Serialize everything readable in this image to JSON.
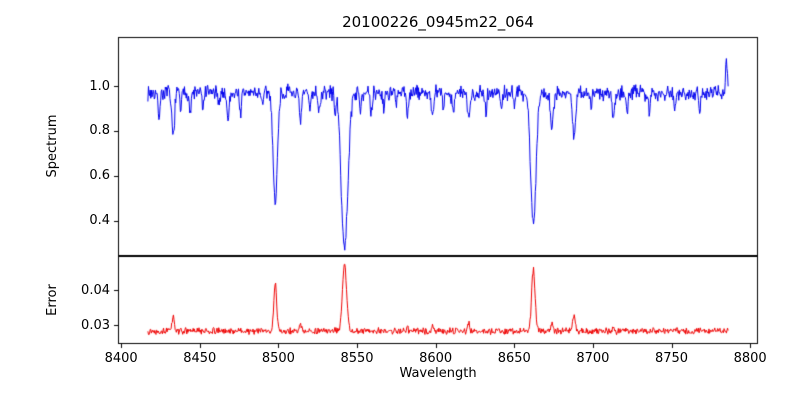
{
  "title": "20100226_0945m22_064",
  "xlabel": "Wavelength",
  "chart_data": {
    "type": "line",
    "title": "20100226_0945m22_064",
    "xlabel": "Wavelength",
    "xlim": [
      8398,
      8805
    ],
    "xticks": [
      8400,
      8450,
      8500,
      8550,
      8600,
      8650,
      8700,
      8750,
      8800
    ],
    "xtick_labels": [
      "8400",
      "8450",
      "8500",
      "8550",
      "8600",
      "8650",
      "8700",
      "8750",
      "8800"
    ],
    "grid": false,
    "legend": false,
    "features_format": "[center_x, amplitude, sigma]",
    "panels": [
      {
        "name": "spectrum",
        "ylabel": "Spectrum",
        "ylim": [
          0.244,
          1.218
        ],
        "yticks": [
          0.4,
          0.6,
          0.8,
          1.0
        ],
        "ytick_labels": [
          "0.4",
          "0.6",
          "0.8",
          "1.0"
        ],
        "color": "#0000ee",
        "line_width": 1,
        "x_start": 8417,
        "x_end": 8786,
        "n_points": 1000,
        "baseline": 0.97,
        "noise_amplitude": 0.042,
        "seed": 7,
        "main_absorption_centers": [
          8498,
          8542,
          8662
        ],
        "main_absorption_minima": [
          0.47,
          0.28,
          0.39
        ],
        "features": [
          [
            8498.02,
            -0.5,
            1.3
          ],
          [
            8542.09,
            -0.695,
            2.1
          ],
          [
            8662.14,
            -0.585,
            1.7
          ],
          [
            8424,
            -0.1,
            0.7
          ],
          [
            8433,
            -0.19,
            0.9
          ],
          [
            8438,
            -0.08,
            0.5
          ],
          [
            8444,
            -0.09,
            0.6
          ],
          [
            8452,
            -0.08,
            0.5
          ],
          [
            8462,
            -0.07,
            0.5
          ],
          [
            8468,
            -0.12,
            0.7
          ],
          [
            8476,
            -0.09,
            0.6
          ],
          [
            8490,
            -0.07,
            0.5
          ],
          [
            8514,
            -0.13,
            0.8
          ],
          [
            8520,
            -0.08,
            0.5
          ],
          [
            8526,
            -0.09,
            0.6
          ],
          [
            8536,
            -0.07,
            0.5
          ],
          [
            8552,
            -0.07,
            0.5
          ],
          [
            8559,
            -0.1,
            0.7
          ],
          [
            8567,
            -0.08,
            0.5
          ],
          [
            8575,
            -0.07,
            0.5
          ],
          [
            8582,
            -0.1,
            0.6
          ],
          [
            8598,
            -0.12,
            0.7
          ],
          [
            8605,
            -0.07,
            0.5
          ],
          [
            8611,
            -0.09,
            0.6
          ],
          [
            8621,
            -0.13,
            0.8
          ],
          [
            8632,
            -0.08,
            0.5
          ],
          [
            8642,
            -0.07,
            0.5
          ],
          [
            8650,
            -0.06,
            0.5
          ],
          [
            8674,
            -0.16,
            0.9
          ],
          [
            8688,
            -0.2,
            1.0
          ],
          [
            8699,
            -0.08,
            0.5
          ],
          [
            8713,
            -0.11,
            0.7
          ],
          [
            8722,
            -0.08,
            0.5
          ],
          [
            8736,
            -0.09,
            0.6
          ],
          [
            8752,
            -0.08,
            0.5
          ],
          [
            8768,
            -0.09,
            0.6
          ],
          [
            8785,
            0.16,
            0.5
          ]
        ]
      },
      {
        "name": "error",
        "ylabel": "Error",
        "ylim": [
          0.0246,
          0.0497
        ],
        "yticks": [
          0.03,
          0.04
        ],
        "ytick_labels": [
          "0.03",
          "0.04"
        ],
        "color": "#ee0000",
        "line_width": 1,
        "x_start": 8417,
        "x_end": 8786,
        "n_points": 1000,
        "baseline": 0.0283,
        "noise_amplitude": 0.0011,
        "seed": 13,
        "main_peak_centers": [
          8498,
          8542,
          8662
        ],
        "main_peak_maxima": [
          0.042,
          0.047,
          0.046
        ],
        "features": [
          [
            8498.02,
            0.0135,
            0.9
          ],
          [
            8542.09,
            0.019,
            1.3
          ],
          [
            8662.14,
            0.0175,
            1.1
          ],
          [
            8433,
            0.004,
            0.8
          ],
          [
            8514,
            0.002,
            0.6
          ],
          [
            8582,
            0.0015,
            0.5
          ],
          [
            8598,
            0.0018,
            0.5
          ],
          [
            8621,
            0.002,
            0.6
          ],
          [
            8674,
            0.0025,
            0.7
          ],
          [
            8688,
            0.0045,
            0.9
          ],
          [
            8713,
            0.0018,
            0.5
          ]
        ]
      }
    ]
  }
}
